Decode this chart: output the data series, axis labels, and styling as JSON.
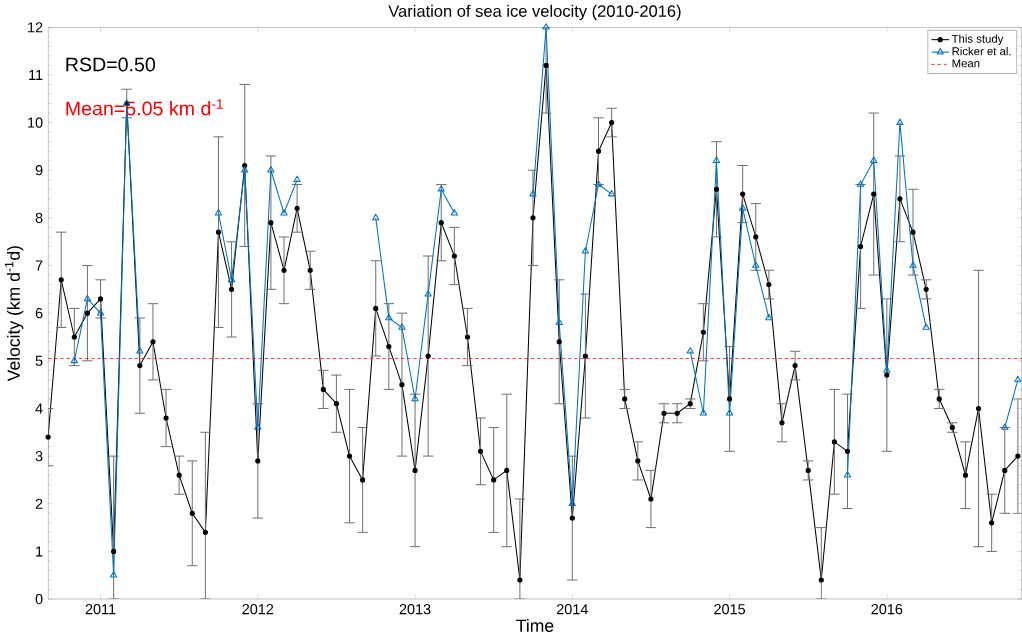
{
  "chart_data": {
    "type": "line",
    "title": "Variation of sea ice velocity (2010-2016)",
    "xlabel": "Time",
    "ylabel": "Velocity (km d$^{-1}$d)",
    "annotations": [
      "RSD=0.50",
      "Mean=5.05 km d$^{-1}$"
    ],
    "x": [
      "2010-09",
      "2010-10",
      "2010-11",
      "2010-12",
      "2011-01",
      "2011-02",
      "2011-03",
      "2011-04",
      "2011-05",
      "2011-06",
      "2011-07",
      "2011-08",
      "2011-09",
      "2011-10",
      "2011-11",
      "2011-12",
      "2012-01",
      "2012-02",
      "2012-03",
      "2012-04",
      "2012-05",
      "2012-06",
      "2012-07",
      "2012-08",
      "2012-09",
      "2012-10",
      "2012-11",
      "2012-12",
      "2013-01",
      "2013-02",
      "2013-03",
      "2013-04",
      "2013-05",
      "2013-06",
      "2013-07",
      "2013-08",
      "2013-09",
      "2013-10",
      "2013-11",
      "2013-12",
      "2014-01",
      "2014-02",
      "2014-03",
      "2014-04",
      "2014-05",
      "2014-06",
      "2014-07",
      "2014-08",
      "2014-09",
      "2014-10",
      "2014-11",
      "2014-12",
      "2015-01",
      "2015-02",
      "2015-03",
      "2015-04",
      "2015-05",
      "2015-06",
      "2015-07",
      "2015-08",
      "2015-09",
      "2015-10",
      "2015-11",
      "2015-12",
      "2016-01",
      "2016-02",
      "2016-03",
      "2016-04",
      "2016-05",
      "2016-06",
      "2016-07",
      "2016-08",
      "2016-09",
      "2016-10",
      "2016-11"
    ],
    "series": [
      {
        "name": "This study",
        "color": "#000000",
        "marker": "circle",
        "values": [
          3.4,
          6.7,
          5.5,
          6.0,
          6.3,
          1.0,
          10.4,
          4.9,
          5.4,
          3.8,
          2.6,
          1.8,
          1.4,
          7.7,
          6.5,
          9.1,
          2.9,
          7.9,
          6.9,
          8.2,
          6.9,
          4.4,
          4.1,
          3.0,
          2.5,
          6.1,
          5.3,
          4.5,
          2.7,
          5.1,
          7.9,
          7.2,
          5.5,
          3.1,
          2.5,
          2.7,
          0.4,
          8.0,
          11.2,
          5.4,
          1.7,
          5.1,
          9.4,
          10.0,
          4.2,
          2.9,
          2.1,
          3.9,
          3.9,
          4.1,
          5.6,
          8.6,
          4.2,
          8.5,
          7.6,
          6.6,
          3.7,
          4.9,
          2.7,
          0.4,
          3.3,
          3.1,
          7.4,
          8.5,
          4.7,
          8.4,
          7.7,
          6.5,
          4.2,
          3.6,
          2.6,
          4.0,
          1.6,
          2.7,
          3.0
        ],
        "errors": [
          0.6,
          1.0,
          0.6,
          1.0,
          0.4,
          [
            0,
            3.0
          ],
          0.3,
          1.0,
          0.8,
          0.6,
          0.4,
          1.1,
          [
            0,
            3.5
          ],
          2.0,
          1.0,
          1.7,
          1.2,
          1.4,
          0.7,
          0.5,
          0.4,
          0.4,
          0.6,
          1.4,
          1.1,
          1.0,
          0.9,
          1.5,
          1.6,
          2.1,
          0.8,
          0.6,
          0.6,
          0.7,
          1.1,
          1.6,
          [
            0,
            2.1
          ],
          1.0,
          [
            10.2,
            12
          ],
          1.3,
          1.3,
          1.3,
          0.7,
          0.3,
          0.2,
          0.4,
          0.6,
          0.2,
          0.2,
          0.1,
          0.6,
          1.0,
          1.1,
          0.6,
          0.7,
          0.3,
          0.4,
          0.3,
          0.2,
          [
            0,
            1.5
          ],
          1.1,
          1.2,
          1.3,
          1.7,
          1.6,
          0.9,
          0.9,
          0.2,
          0.2,
          0.1,
          0.7,
          2.9,
          0.6,
          0.9,
          1.2
        ]
      },
      {
        "name": "Ricker et al.",
        "color": "#0072bd",
        "marker": "triangle",
        "values": [
          null,
          null,
          5.0,
          6.3,
          6.0,
          0.5,
          10.4,
          5.2,
          null,
          null,
          null,
          null,
          null,
          8.1,
          6.7,
          9.0,
          3.6,
          9.0,
          8.1,
          8.8,
          null,
          null,
          null,
          null,
          null,
          8.0,
          5.9,
          5.7,
          4.2,
          6.4,
          8.6,
          8.1,
          null,
          null,
          null,
          null,
          null,
          8.5,
          12.0,
          5.8,
          2.0,
          7.3,
          8.7,
          8.5,
          null,
          null,
          null,
          null,
          null,
          5.2,
          3.9,
          9.2,
          3.9,
          8.2,
          7.0,
          5.9,
          null,
          null,
          null,
          null,
          null,
          2.6,
          8.7,
          9.2,
          4.8,
          10.0,
          7.0,
          5.7,
          null,
          null,
          null,
          null,
          null,
          3.6,
          4.6
        ]
      }
    ],
    "ref_lines": [
      {
        "axis": "y",
        "value": 5.05,
        "label": "Mean",
        "color": "#ff0000",
        "line_style": "dashed"
      }
    ],
    "xlim": [
      "2010-09",
      "2016-11-10"
    ],
    "xticks": [
      "2011",
      "2012",
      "2013",
      "2014",
      "2015",
      "2016"
    ],
    "ylim": [
      0,
      12
    ],
    "yticks": [
      0,
      1,
      2,
      3,
      4,
      5,
      6,
      7,
      8,
      9,
      10,
      11,
      12
    ],
    "legend": "top right",
    "grid": false
  }
}
